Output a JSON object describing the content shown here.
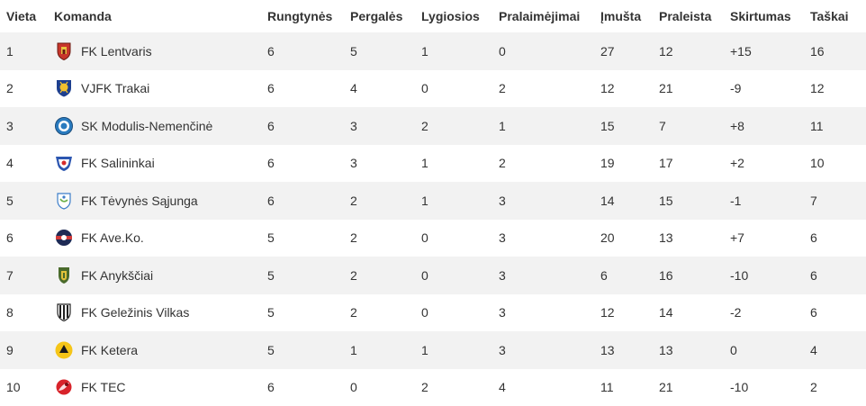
{
  "table": {
    "headers": {
      "position": "Vieta",
      "team": "Komanda",
      "played": "Rungtynės",
      "won": "Pergalės",
      "drawn": "Lygiosios",
      "lost": "Pralaimėjimai",
      "scored": "Įmušta",
      "conceded": "Praleista",
      "difference": "Skirtumas",
      "points": "Taškai"
    },
    "rows": [
      {
        "position": "1",
        "team": "FK Lentvaris",
        "logo": "lentvaris-crest-icon",
        "played": "6",
        "won": "5",
        "drawn": "1",
        "lost": "0",
        "scored": "27",
        "conceded": "12",
        "difference": "+15",
        "points": "16"
      },
      {
        "position": "2",
        "team": "VJFK Trakai",
        "logo": "trakai-crest-icon",
        "played": "6",
        "won": "4",
        "drawn": "0",
        "lost": "2",
        "scored": "12",
        "conceded": "21",
        "difference": "-9",
        "points": "12"
      },
      {
        "position": "3",
        "team": "SK Modulis-Nemenčinė",
        "logo": "modulis-crest-icon",
        "played": "6",
        "won": "3",
        "drawn": "2",
        "lost": "1",
        "scored": "15",
        "conceded": "7",
        "difference": "+8",
        "points": "11"
      },
      {
        "position": "4",
        "team": "FK Salininkai",
        "logo": "salininkai-crest-icon",
        "played": "6",
        "won": "3",
        "drawn": "1",
        "lost": "2",
        "scored": "19",
        "conceded": "17",
        "difference": "+2",
        "points": "10"
      },
      {
        "position": "5",
        "team": "FK Tėvynės Sąjunga",
        "logo": "tevynes-sajunga-crest-icon",
        "played": "6",
        "won": "2",
        "drawn": "1",
        "lost": "3",
        "scored": "14",
        "conceded": "15",
        "difference": "-1",
        "points": "7"
      },
      {
        "position": "6",
        "team": "FK Ave.Ko.",
        "logo": "aveko-crest-icon",
        "played": "5",
        "won": "2",
        "drawn": "0",
        "lost": "3",
        "scored": "20",
        "conceded": "13",
        "difference": "+7",
        "points": "6"
      },
      {
        "position": "7",
        "team": "FK Anykščiai",
        "logo": "anyksciai-crest-icon",
        "played": "5",
        "won": "2",
        "drawn": "0",
        "lost": "3",
        "scored": "6",
        "conceded": "16",
        "difference": "-10",
        "points": "6"
      },
      {
        "position": "8",
        "team": "FK Geležinis Vilkas",
        "logo": "gelezinis-vilkas-crest-icon",
        "played": "5",
        "won": "2",
        "drawn": "0",
        "lost": "3",
        "scored": "12",
        "conceded": "14",
        "difference": "-2",
        "points": "6"
      },
      {
        "position": "9",
        "team": "FK Ketera",
        "logo": "ketera-crest-icon",
        "played": "5",
        "won": "1",
        "drawn": "1",
        "lost": "3",
        "scored": "13",
        "conceded": "13",
        "difference": "0",
        "points": "4"
      },
      {
        "position": "10",
        "team": "FK TEC",
        "logo": "tec-crest-icon",
        "played": "6",
        "won": "0",
        "drawn": "2",
        "lost": "4",
        "scored": "11",
        "conceded": "21",
        "difference": "-10",
        "points": "2"
      }
    ]
  },
  "colors": {
    "row_alt": "#f2f2f2",
    "text": "#333333"
  }
}
